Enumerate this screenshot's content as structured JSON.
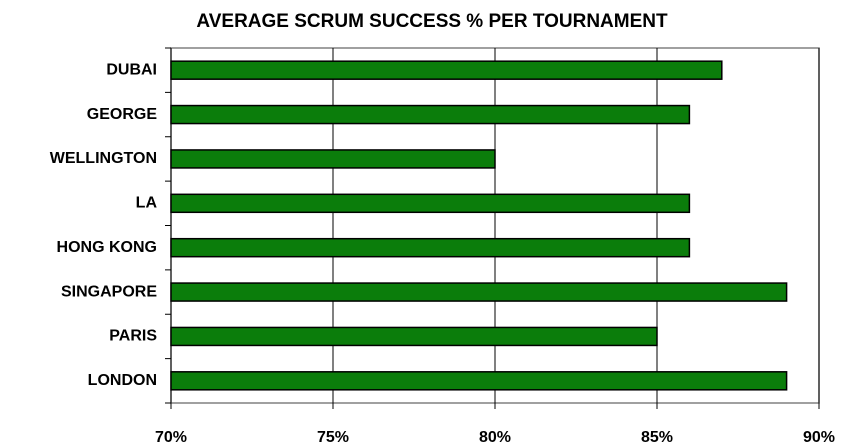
{
  "chart_data": {
    "type": "bar",
    "orientation": "horizontal",
    "title": "AVERAGE SCRUM SUCCESS % PER TOURNAMENT",
    "categories": [
      "DUBAI",
      "GEORGE",
      "WELLINGTON",
      "LA",
      "HONG KONG",
      "SINGAPORE",
      "PARIS",
      "LONDON"
    ],
    "values": [
      87,
      86,
      80,
      86,
      86,
      89,
      85,
      89
    ],
    "color": "#0b7d0b",
    "xlim": [
      70,
      90
    ],
    "xticks": [
      {
        "value": 70,
        "label": "70%"
      },
      {
        "value": 75,
        "label": "75%"
      },
      {
        "value": 80,
        "label": "80%"
      },
      {
        "value": 85,
        "label": "85%"
      },
      {
        "value": 90,
        "label": "90%"
      }
    ],
    "grid": true
  }
}
